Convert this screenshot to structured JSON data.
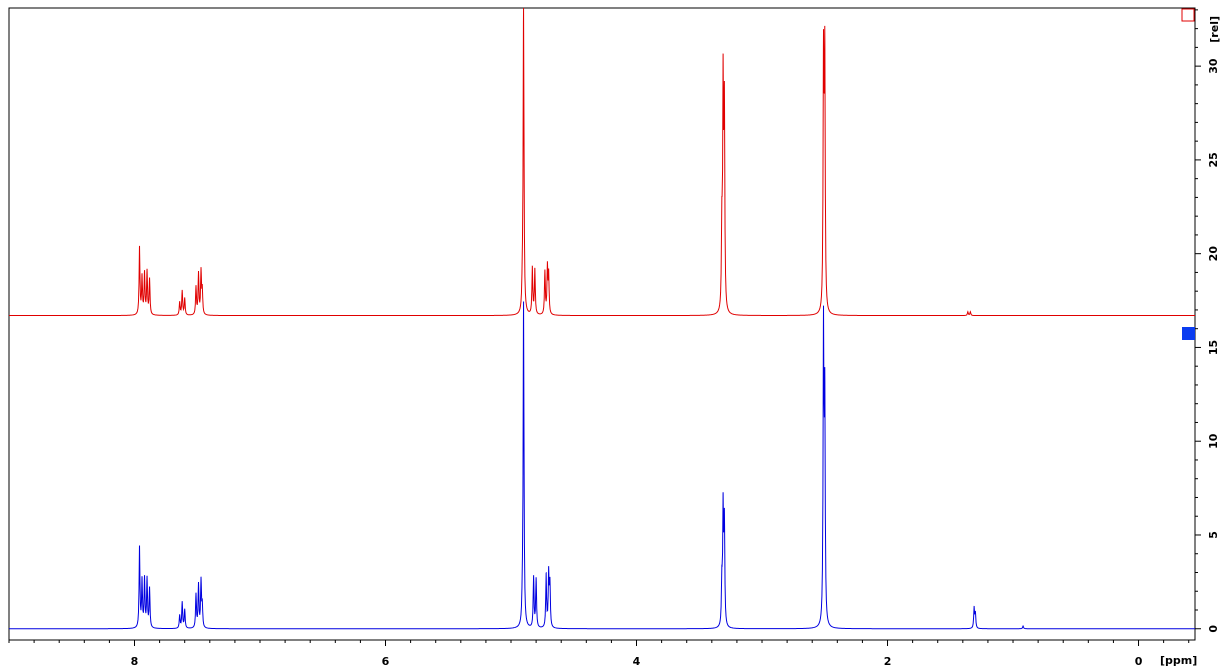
{
  "chart_data": {
    "type": "line",
    "title": "",
    "xlabel": "[ppm]",
    "ylabel": "[rel]",
    "xlim": [
      9.0,
      -0.45
    ],
    "ylim": [
      -0.6,
      33.1
    ],
    "x_ticks_major": [
      8,
      6,
      4,
      2,
      0
    ],
    "x_ticks_minor_step": 0.2,
    "y_ticks_major": [
      0,
      5,
      10,
      15,
      20,
      25,
      30
    ],
    "y_ticks_minor_step": 1,
    "grid": false,
    "series": [
      {
        "color": "#e00000",
        "baseline": 16.7,
        "peaks": [
          {
            "x": 7.96,
            "h": 3.6
          },
          {
            "x": 7.94,
            "h": 2.0
          },
          {
            "x": 7.92,
            "h": 2.2
          },
          {
            "x": 7.9,
            "h": 2.3
          },
          {
            "x": 7.88,
            "h": 1.9
          },
          {
            "x": 7.64,
            "h": 0.7
          },
          {
            "x": 7.62,
            "h": 1.3
          },
          {
            "x": 7.6,
            "h": 0.9
          },
          {
            "x": 7.51,
            "h": 1.5
          },
          {
            "x": 7.49,
            "h": 2.2
          },
          {
            "x": 7.47,
            "h": 2.3
          },
          {
            "x": 7.46,
            "h": 1.3
          },
          {
            "x": 4.9,
            "h": 16.5
          },
          {
            "x": 4.91,
            "h": 1.2
          },
          {
            "x": 4.83,
            "h": 2.5
          },
          {
            "x": 4.81,
            "h": 2.4
          },
          {
            "x": 4.73,
            "h": 2.3
          },
          {
            "x": 4.71,
            "h": 2.5
          },
          {
            "x": 4.7,
            "h": 2.1
          },
          {
            "x": 3.32,
            "h": 4.3
          },
          {
            "x": 3.31,
            "h": 11.9
          },
          {
            "x": 3.3,
            "h": 10.7
          },
          {
            "x": 2.51,
            "h": 13.4
          },
          {
            "x": 2.5,
            "h": 13.6
          },
          {
            "x": 1.36,
            "h": 0.2
          },
          {
            "x": 1.34,
            "h": 0.2
          }
        ]
      },
      {
        "color": "#0000e0",
        "baseline": 0.0,
        "peaks": [
          {
            "x": 7.96,
            "h": 4.3
          },
          {
            "x": 7.94,
            "h": 2.5
          },
          {
            "x": 7.92,
            "h": 2.6
          },
          {
            "x": 7.9,
            "h": 2.6
          },
          {
            "x": 7.88,
            "h": 2.1
          },
          {
            "x": 7.64,
            "h": 0.7
          },
          {
            "x": 7.62,
            "h": 1.4
          },
          {
            "x": 7.6,
            "h": 1.0
          },
          {
            "x": 7.51,
            "h": 1.8
          },
          {
            "x": 7.49,
            "h": 2.3
          },
          {
            "x": 7.47,
            "h": 2.5
          },
          {
            "x": 7.46,
            "h": 1.2
          },
          {
            "x": 4.9,
            "h": 17.3
          },
          {
            "x": 4.91,
            "h": 1.0
          },
          {
            "x": 4.82,
            "h": 2.7
          },
          {
            "x": 4.8,
            "h": 2.6
          },
          {
            "x": 4.72,
            "h": 2.8
          },
          {
            "x": 4.7,
            "h": 2.9
          },
          {
            "x": 4.69,
            "h": 2.3
          },
          {
            "x": 3.32,
            "h": 2.3
          },
          {
            "x": 3.31,
            "h": 6.2
          },
          {
            "x": 3.3,
            "h": 5.5
          },
          {
            "x": 2.51,
            "h": 15.6
          },
          {
            "x": 2.5,
            "h": 11.8
          },
          {
            "x": 1.31,
            "h": 1.1
          },
          {
            "x": 1.3,
            "h": 0.8
          },
          {
            "x": 0.92,
            "h": 0.15
          }
        ]
      }
    ]
  }
}
